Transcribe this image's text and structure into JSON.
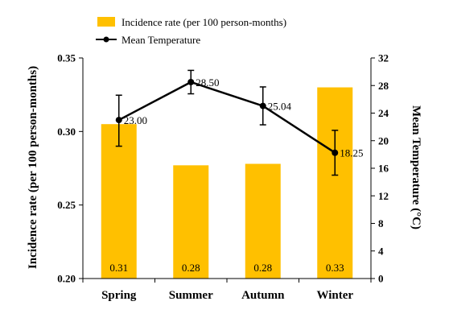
{
  "chart_data": {
    "type": "bar",
    "categories": [
      "Spring",
      "Summer",
      "Autumn",
      "Winter"
    ],
    "series": [
      {
        "name": "Incidence rate (per 100 person-months)",
        "kind": "bar",
        "axis": "left",
        "color": "#FFC000",
        "values": [
          0.305,
          0.277,
          0.278,
          0.33
        ],
        "labels": [
          "0.31",
          "0.28",
          "0.28",
          "0.33"
        ]
      },
      {
        "name": "Mean Temperature",
        "kind": "line",
        "axis": "right",
        "color": "#000000",
        "values": [
          23.0,
          28.5,
          25.04,
          18.25
        ],
        "labels": [
          "23.00",
          "28.50",
          "25.04",
          "18.25"
        ],
        "error_low": [
          19.2,
          26.8,
          22.3,
          15.0
        ],
        "error_high": [
          26.6,
          30.2,
          27.8,
          21.5
        ]
      }
    ],
    "ylabel": "Incidence rate (per 100 person-months)",
    "y2label": "Mean Temperature (°C)",
    "ylim": [
      0.2,
      0.35
    ],
    "yticks": [
      "0.20",
      "0.25",
      "0.30",
      "0.35"
    ],
    "yticks_values": [
      0.2,
      0.25,
      0.3,
      0.35
    ],
    "y2lim": [
      0,
      32
    ],
    "y2ticks": [
      "0",
      "4",
      "8",
      "12",
      "16",
      "20",
      "24",
      "28",
      "32"
    ],
    "y2ticks_values": [
      0,
      4,
      8,
      12,
      16,
      20,
      24,
      28,
      32
    ],
    "grid": false,
    "legend_position": "top-left"
  }
}
